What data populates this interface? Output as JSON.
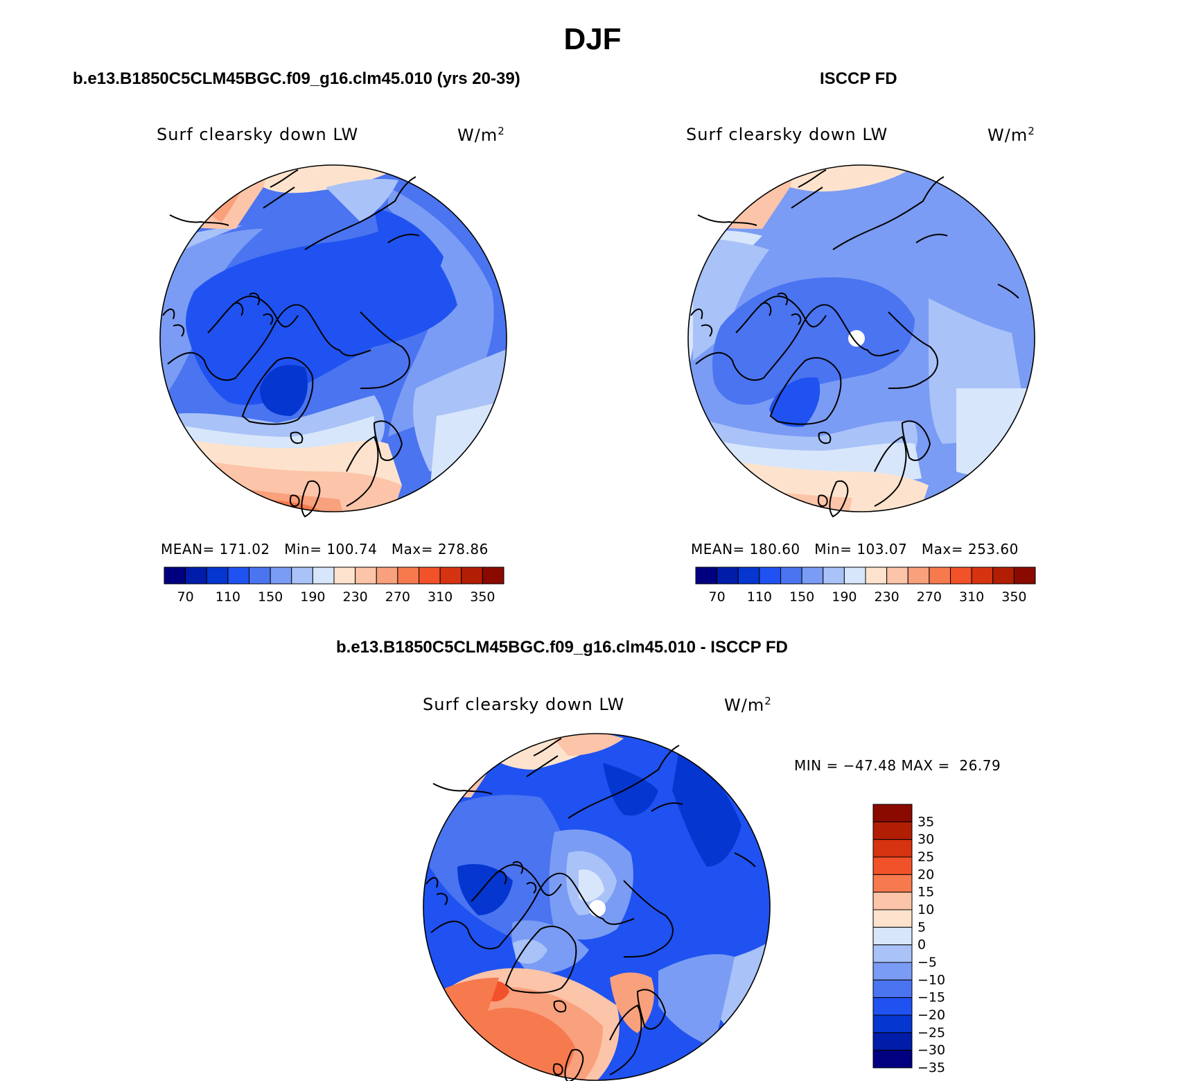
{
  "title": "DJF",
  "panels": [
    {
      "id": "model",
      "heading": "b.e13.B1850C5CLM45BGC.f09_g16.clm45.010 (yrs 20-39)",
      "variable": "Surf clearsky down LW",
      "units": "W/m",
      "units_sup": "2",
      "stats": {
        "mean_label": "MEAN=",
        "mean": "171.02",
        "min_label": "Min=",
        "min": "100.74",
        "max_label": "Max=",
        "max": "278.86"
      }
    },
    {
      "id": "obs",
      "heading": "ISCCP FD",
      "variable": "Surf clearsky down LW",
      "units": "W/m",
      "units_sup": "2",
      "stats": {
        "mean_label": "MEAN=",
        "mean": "180.60",
        "min_label": "Min=",
        "min": "103.07",
        "max_label": "Max=",
        "max": "253.60"
      }
    },
    {
      "id": "diff",
      "heading": "b.e13.B1850C5CLM45BGC.f09_g16.clm45.010 - ISCCP FD",
      "variable": "Surf clearsky down LW",
      "units": "W/m",
      "units_sup": "2",
      "stats": {
        "text": "MIN = −47.48 MAX =  26.79"
      }
    }
  ],
  "colorbar_abs": {
    "colors": [
      "#000080",
      "#001ca8",
      "#0536d0",
      "#1f52f0",
      "#4a74f0",
      "#7b9cf4",
      "#a9c2f8",
      "#d7e6fa",
      "#fde3cd",
      "#fcc4a8",
      "#f9a07c",
      "#f67a4e",
      "#f2522a",
      "#d63310",
      "#b21e04",
      "#8a0a00"
    ],
    "labels": [
      "70",
      "110",
      "150",
      "190",
      "230",
      "270",
      "310",
      "350"
    ]
  },
  "colorbar_diff": {
    "colors": [
      "#8a0a00",
      "#b21e04",
      "#d63310",
      "#f2522a",
      "#f67a4e",
      "#fcc4a8",
      "#fde3cd",
      "#d7e6fa",
      "#a9c2f8",
      "#7b9cf4",
      "#4a74f0",
      "#1f52f0",
      "#0536d0",
      "#001ca8",
      "#000080"
    ],
    "labels": [
      "35",
      "30",
      "25",
      "20",
      "15",
      "10",
      "5",
      "0",
      "−5",
      "−10",
      "−15",
      "−20",
      "−25",
      "−30",
      "−35"
    ]
  },
  "map_colors": {
    "deep_blue": "#0536d0",
    "blue": "#1f52f0",
    "mid_blue": "#4a74f0",
    "light_blue": "#7b9cf4",
    "pale_blue": "#a9c2f8",
    "very_pale_blue": "#d7e6fa",
    "cream": "#fde3cd",
    "peach": "#fcc4a8",
    "salmon": "#f9a07c",
    "orange": "#f67a4e",
    "red_orange": "#f2522a",
    "outline": "#000000"
  }
}
